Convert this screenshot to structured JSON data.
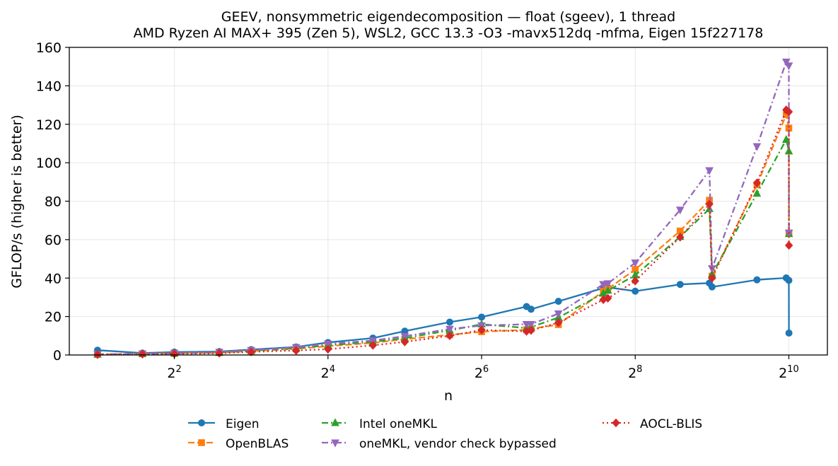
{
  "chart_data": {
    "type": "line",
    "title": "GEEV, nonsymmetric eigendecomposition — float (sgeev), 1 thread",
    "subtitle": "AMD Ryzen AI MAX+ 395 (Zen 5), WSL2, GCC 13.3 -O3 -mavx512dq -mfma, Eigen 15f227178",
    "xlabel": "n",
    "ylabel": "GFLOP/s (higher is better)",
    "xscale": "log2",
    "xlim": [
      1.55,
      1450
    ],
    "ylim": [
      0,
      160
    ],
    "yticks": [
      0,
      20,
      40,
      60,
      80,
      100,
      120,
      140,
      160
    ],
    "xticks": [
      {
        "value": 4,
        "base": "2",
        "exp": "2"
      },
      {
        "value": 16,
        "base": "2",
        "exp": "4"
      },
      {
        "value": 64,
        "base": "2",
        "exp": "6"
      },
      {
        "value": 256,
        "base": "2",
        "exp": "8"
      },
      {
        "value": 1024,
        "base": "2",
        "exp": "10"
      }
    ],
    "grid": true,
    "legend_position": "below",
    "x": [
      2,
      3,
      4,
      6,
      8,
      12,
      16,
      24,
      32,
      48,
      64,
      96,
      100,
      128,
      192,
      200,
      256,
      384,
      500,
      512,
      768,
      1000,
      1024,
      1025
    ],
    "series": [
      {
        "name": "Eigen",
        "color": "#1f77b4",
        "marker": "circle",
        "dash": "solid",
        "values": [
          2.5,
          1.0,
          1.5,
          1.8,
          2.8,
          4.2,
          6.5,
          8.8,
          12.4,
          17.1,
          19.7,
          25.2,
          23.8,
          27.9,
          34.8,
          35.2,
          33.2,
          36.7,
          37.4,
          35.4,
          39.1,
          40.1,
          38.8,
          11.4
        ]
      },
      {
        "name": "OpenBLAS",
        "color": "#ff7f0e",
        "marker": "square",
        "dash": "dashed",
        "values": [
          0.3,
          0.6,
          0.8,
          1.2,
          2.0,
          3.2,
          4.6,
          6.3,
          8.2,
          10.5,
          12.1,
          13.1,
          13.6,
          15.8,
          33.2,
          34.4,
          44.5,
          64.5,
          80.5,
          41.0,
          88.5,
          125.0,
          118.0,
          63.5
        ]
      },
      {
        "name": "Intel oneMKL",
        "color": "#2ca02c",
        "marker": "triangle-up",
        "dash": "dashdot",
        "values": [
          0.3,
          0.6,
          0.8,
          1.3,
          2.2,
          3.5,
          5.0,
          6.8,
          8.8,
          12.8,
          16.0,
          14.0,
          14.5,
          19.5,
          32.0,
          33.5,
          41.5,
          61.5,
          76.0,
          42.0,
          84.0,
          112.0,
          106.0,
          63.0
        ]
      },
      {
        "name": "oneMKL, vendor check bypassed",
        "color": "#9467bd",
        "marker": "triangle-down",
        "dash": "dashdot",
        "values": [
          0.3,
          0.7,
          1.0,
          1.5,
          2.5,
          4.0,
          5.8,
          7.5,
          9.8,
          13.5,
          15.3,
          16.0,
          16.0,
          21.5,
          36.8,
          37.2,
          48.0,
          75.5,
          96.0,
          45.0,
          108.5,
          152.5,
          150.5,
          63.5
        ]
      },
      {
        "name": "AOCL-BLIS",
        "color": "#d62728",
        "marker": "diamond",
        "dash": "dotted",
        "values": [
          0.2,
          0.4,
          0.6,
          0.9,
          1.6,
          2.3,
          3.0,
          5.0,
          6.8,
          10.0,
          13.0,
          12.3,
          12.8,
          16.8,
          28.8,
          29.5,
          38.5,
          61.3,
          78.5,
          40.0,
          89.5,
          127.5,
          126.5,
          57.0
        ]
      }
    ]
  }
}
